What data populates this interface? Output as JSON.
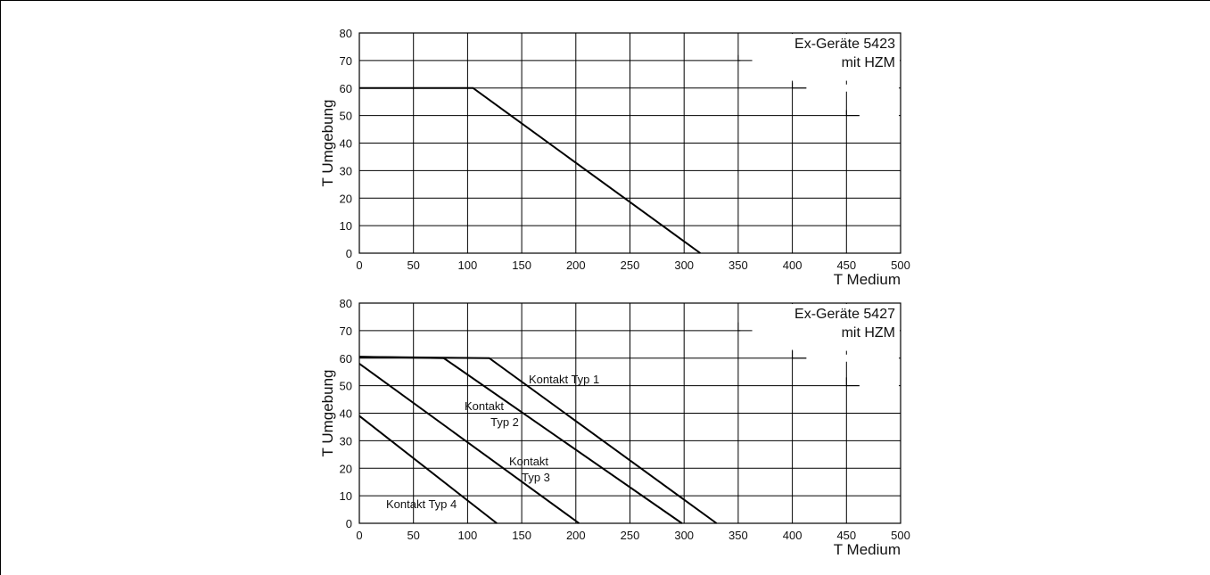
{
  "chart_data": [
    {
      "type": "line",
      "title": "Ex-Geräte 5423",
      "subtitle": "mit HZM",
      "xlabel": "T Medium",
      "ylabel": "T Umgebung",
      "xlim": [
        0,
        500
      ],
      "ylim": [
        0,
        80
      ],
      "x_ticks": [
        0,
        50,
        100,
        150,
        200,
        250,
        300,
        350,
        400,
        450,
        500
      ],
      "y_ticks": [
        0,
        10,
        20,
        30,
        40,
        50,
        60,
        70,
        80
      ],
      "grid": true,
      "temperature_steps": [
        [
          350,
          72
        ],
        [
          350,
          70
        ],
        [
          400,
          62
        ],
        [
          400,
          60
        ],
        [
          450,
          52
        ],
        [
          450,
          50
        ]
      ],
      "series": [
        {
          "label": "",
          "points": [
            [
              0,
              60
            ],
            [
              105,
              60
            ],
            [
              315,
              0
            ]
          ]
        }
      ]
    },
    {
      "type": "line",
      "title": "Ex-Geräte 5427",
      "subtitle": "mit HZM",
      "xlabel": "T Medium",
      "ylabel": "T Umgebung",
      "xlim": [
        0,
        500
      ],
      "ylim": [
        0,
        80
      ],
      "x_ticks": [
        0,
        50,
        100,
        150,
        200,
        250,
        300,
        350,
        400,
        450,
        500
      ],
      "y_ticks": [
        0,
        10,
        20,
        30,
        40,
        50,
        60,
        70,
        80
      ],
      "grid": true,
      "temperature_steps": [
        [
          350,
          73
        ],
        [
          350,
          70
        ],
        [
          400,
          63
        ],
        [
          400,
          60
        ],
        [
          450,
          53
        ],
        [
          450,
          50
        ]
      ],
      "series": [
        {
          "label": "Kontakt Typ 1",
          "points": [
            [
              0,
              60.5
            ],
            [
              120,
              60
            ],
            [
              330,
              0
            ]
          ]
        },
        {
          "label": "Kontakt Typ 2",
          "points": [
            [
              0,
              60.5
            ],
            [
              78,
              60
            ],
            [
              298,
              0
            ]
          ]
        },
        {
          "label": "Kontakt Typ 3",
          "points": [
            [
              0,
              58
            ],
            [
              203,
              0
            ]
          ]
        },
        {
          "label": "Kontakt Typ 4",
          "points": [
            [
              0,
              39
            ],
            [
              127,
              0
            ]
          ]
        }
      ]
    }
  ]
}
